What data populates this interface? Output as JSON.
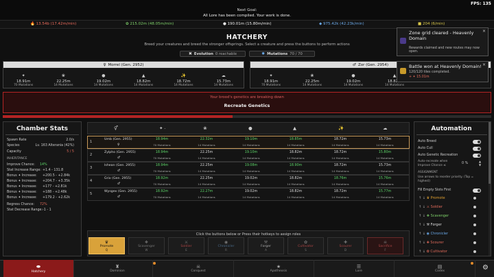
{
  "header": {
    "goal_label": "Next Goal:",
    "goal_text": "All Lore has been compiled. Your work is done.",
    "fps": "FPS: 135"
  },
  "resources": [
    {
      "icon": "flame-icon",
      "text": "13.54b (17.42m/min)",
      "color": "#e86a5a"
    },
    {
      "icon": "leaf-icon",
      "text": "215.02m (48.05m/min)",
      "color": "#7fd16a"
    },
    {
      "icon": "drop-icon",
      "text": "190.01m (15.80m/min)",
      "color": "#eeeeee"
    },
    {
      "icon": "gem-icon",
      "text": "975.42k (42.23k/min)",
      "color": "#6aa8e8"
    },
    {
      "icon": "coin-icon",
      "text": "204 (6/min)",
      "color": "#d9c84a"
    }
  ],
  "hatchery": {
    "title": "HATCHERY",
    "subtitle": "Breed your creatures and breed the stronger offsprings. Select a creature and press the buttons to perform actions",
    "evolution_label": "Evolution",
    "evolution_value": "0 reachable",
    "mutations_label": "Mutations",
    "mutations_value": "70 / 70"
  },
  "parents": [
    {
      "name": "Morrel (Gen. 2952)",
      "stats": [
        {
          "icon": "sparkle-icon",
          "value": "18.91m",
          "mut": "70 Mutations"
        },
        {
          "icon": "moth-icon",
          "value": "22.25m",
          "mut": "14 Mutations"
        },
        {
          "icon": "drop-icon",
          "value": "19.02m",
          "mut": "14 Mutations"
        },
        {
          "icon": "flame-icon",
          "value": "18.82m",
          "mut": "14 Mutations"
        },
        {
          "icon": "claw-icon",
          "value": "18.72m",
          "mut": "14 Mutations"
        },
        {
          "icon": "cloud-icon",
          "value": "15.73m",
          "mut": "14 Mutations"
        }
      ]
    },
    {
      "name": "Zor (Gen. 2954)",
      "stats": [
        {
          "icon": "sparkle-icon",
          "value": "18.91m",
          "mut": "70 Mutations"
        },
        {
          "icon": "moth-icon",
          "value": "22.25m",
          "mut": "14 Mutations"
        },
        {
          "icon": "drop-icon",
          "value": "19.02m",
          "mut": "14 Mutations"
        },
        {
          "icon": "flame-icon",
          "value": "18.82m",
          "mut": "14 Mutations"
        }
      ]
    }
  ],
  "warning": {
    "text": "Your brood's genetics are breaking down",
    "button": "Recreate Genetics"
  },
  "chamber": {
    "title": "Chamber Stats",
    "rows": [
      {
        "k": "Spawn Rate",
        "v": "2.0/s"
      },
      {
        "k": "Species",
        "v": "Lv. 163 Alterania (42%)"
      },
      {
        "k": "Capacity",
        "v": "5 / 5"
      }
    ],
    "inheritance_label": "INHERITANCE",
    "inh_rows": [
      {
        "k": "Improve Chance:",
        "v": "14%"
      },
      {
        "k": "Stat Increase Range:",
        "v": "+1.4 - 131.8"
      },
      {
        "k": "Bonus ✦ Increase:",
        "v": "+200.5 - +2.84k"
      },
      {
        "k": "Bonus ✦ Increase:",
        "v": "+204.7 - +3.35k"
      },
      {
        "k": "Bonus ✦ Increase:",
        "v": "+177 - +2.81k"
      },
      {
        "k": "Bonus ✦ Increase:",
        "v": "+188 - +2.48k"
      },
      {
        "k": "Bonus ✦ Increase:",
        "v": "+179.2 - +2.62k"
      }
    ],
    "regress_label": "Regress Chance:",
    "regress_value": "72%",
    "decrease_label": "Stat Decrease Range:",
    "decrease_value": "-1 - 1"
  },
  "table": {
    "col_icons": [
      "gender-icon",
      "sparkle-icon",
      "moth-icon",
      "drop-icon",
      "flame-icon",
      "claw-icon",
      "cloud-icon"
    ],
    "rows": [
      {
        "num": "1",
        "name": "Umb (Gen. 2955)",
        "sex": "♀",
        "vals": [
          {
            "v": "18.94m",
            "m": "70 Mutations",
            "g": true
          },
          {
            "v": "22.32m",
            "m": "14 Mutations",
            "g": true
          },
          {
            "v": "19.10m",
            "m": "14 Mutations",
            "g": true
          },
          {
            "v": "18.85m",
            "m": "14 Mutations",
            "g": true
          },
          {
            "v": "18.72m",
            "m": "14 Mutations",
            "g": false
          },
          {
            "v": "15.73m",
            "m": "14 Mutations",
            "g": false
          }
        ]
      },
      {
        "num": "2",
        "name": "Zylpho (Gen. 2955)",
        "sex": "♂",
        "vals": [
          {
            "v": "18.94m",
            "m": "70 Mutations",
            "g": true
          },
          {
            "v": "22.25m",
            "m": "14 Mutations",
            "g": false
          },
          {
            "v": "19.10m",
            "m": "14 Mutations",
            "g": true
          },
          {
            "v": "18.82m",
            "m": "14 Mutations",
            "g": false
          },
          {
            "v": "18.72m",
            "m": "14 Mutations",
            "g": false
          },
          {
            "v": "15.80m",
            "m": "14 Mutations",
            "g": true
          }
        ]
      },
      {
        "num": "3",
        "name": "Ishean (Gen. 2955)",
        "sex": "♂",
        "vals": [
          {
            "v": "18.94m",
            "m": "70 Mutations",
            "g": true
          },
          {
            "v": "22.25m",
            "m": "14 Mutations",
            "g": false
          },
          {
            "v": "19.08m",
            "m": "14 Mutations",
            "g": true
          },
          {
            "v": "18.90m",
            "m": "14 Mutations",
            "g": true
          },
          {
            "v": "18.72m",
            "m": "14 Mutations",
            "g": false
          },
          {
            "v": "15.73m",
            "m": "14 Mutations",
            "g": false
          }
        ]
      },
      {
        "num": "4",
        "name": "Grix (Gen. 2955)",
        "sex": "♂",
        "vals": [
          {
            "v": "18.92m",
            "m": "70 Mutations",
            "g": true
          },
          {
            "v": "22.25m",
            "m": "14 Mutations",
            "g": false
          },
          {
            "v": "19.02m",
            "m": "14 Mutations",
            "g": false
          },
          {
            "v": "18.82m",
            "m": "14 Mutations",
            "g": false
          },
          {
            "v": "18.76m",
            "m": "14 Mutations",
            "g": true
          },
          {
            "v": "15.76m",
            "m": "14 Mutations",
            "g": true
          }
        ]
      },
      {
        "num": "5",
        "name": "Wysgex (Gen. 2955)",
        "sex": "♂",
        "vals": [
          {
            "v": "18.92m",
            "m": "70 Mutations",
            "g": true
          },
          {
            "v": "22.27m",
            "m": "14 Mutations",
            "g": true
          },
          {
            "v": "19.02m",
            "m": "14 Mutations",
            "g": false
          },
          {
            "v": "18.82m",
            "m": "14 Mutations",
            "g": false
          },
          {
            "v": "18.72m",
            "m": "14 Mutations",
            "g": false
          },
          {
            "v": "15.77m",
            "m": "14 Mutations",
            "g": true
          }
        ]
      }
    ]
  },
  "roles": {
    "hint": "Click the buttons below or Press their hotkeys to assign roles",
    "items": [
      {
        "label": "Promote",
        "key": "Q",
        "icon": "crown-icon",
        "active": true
      },
      {
        "label": "Scavenger",
        "key": "W",
        "icon": "bag-icon",
        "active": false
      },
      {
        "label": "Soldier",
        "key": "E",
        "icon": "sword-icon",
        "active": false
      },
      {
        "label": "Chronicler",
        "key": "R",
        "icon": "eye-icon",
        "active": false
      },
      {
        "label": "Forger",
        "key": "A",
        "icon": "hammer-icon",
        "active": false
      },
      {
        "label": "Cultivator",
        "key": "S",
        "icon": "sprout-icon",
        "active": false
      },
      {
        "label": "Scourer",
        "key": "D",
        "icon": "scythe-icon",
        "active": false
      },
      {
        "label": "Sacrifice",
        "key": "F",
        "icon": "skull-icon",
        "active": false
      }
    ]
  },
  "automation": {
    "title": "Automation",
    "auto_breed": "Auto Breed",
    "auto_cull": "Auto Cull",
    "auto_recreate": "Auto Genetic Recreation",
    "recreate_desc": "Auto-recreate when Improve Chance ≤",
    "recreate_value": "0 %",
    "assignment_label": "ASSIGNMENT",
    "assignment_desc": "Use arrows to reorder priority. (Top = highest)",
    "fill_empty": "Fill Empty Slots First",
    "order": [
      {
        "label": "Promote",
        "color": "#e0a030",
        "icon": "crown-icon"
      },
      {
        "label": "Soldier",
        "color": "#e06a5a",
        "icon": "sword-icon"
      },
      {
        "label": "Scavenger",
        "color": "#7fd16a",
        "icon": "bag-icon"
      },
      {
        "label": "Forger",
        "color": "#dddddd",
        "icon": "hammer-icon"
      },
      {
        "label": "Chronicler",
        "color": "#6aa8e8",
        "icon": "eye-icon"
      },
      {
        "label": "Scourer",
        "color": "#e06a5a",
        "icon": "scythe-icon"
      },
      {
        "label": "Cultivator",
        "color": "#e06a5a",
        "icon": "sprout-icon"
      }
    ]
  },
  "notifications": [
    {
      "title": "Zone grid cleared - Heavenly Domain",
      "body": "Rewards claimed and new routes may now open."
    },
    {
      "title": "Battle won at Heavenly Domain!",
      "body": "120/120 tiles completed.",
      "reward": "+ ✦ 15.01m"
    }
  ],
  "nav": [
    {
      "label": "Hatchery",
      "icon": "egg-icon",
      "active": true
    },
    {
      "label": "Dominion",
      "icon": "castle-icon",
      "active": false
    },
    {
      "label": "Conquest",
      "icon": "skull-icon",
      "active": false
    },
    {
      "label": "Apotheosis",
      "icon": "star-icon",
      "active": false
    },
    {
      "label": "Lore",
      "icon": "book-icon",
      "active": false
    },
    {
      "label": "Codex",
      "icon": "codex-icon",
      "active": false
    }
  ]
}
